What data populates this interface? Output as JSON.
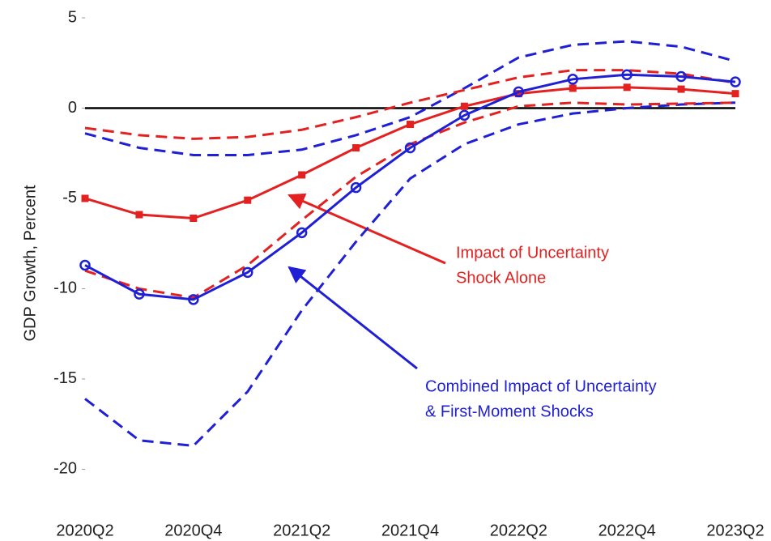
{
  "chart_data": {
    "type": "line",
    "y_label": "GDP Growth, Percent",
    "categories": [
      "2020Q2",
      null,
      "2020Q4",
      null,
      "2021Q2",
      null,
      "2021Q4",
      null,
      "2022Q2",
      null,
      "2022Q4",
      null,
      "2023Q2"
    ],
    "ylim": [
      -22,
      5
    ],
    "yticks": [
      -20,
      -15,
      -10,
      -5,
      0,
      5
    ],
    "series": [
      {
        "color": "#1f1fd6",
        "dash": true,
        "values": [
          -16.1,
          -18.4,
          -18.7,
          -15.7,
          -11.2,
          -7.4,
          -3.9,
          -2.0,
          -0.9,
          -0.3,
          0.0,
          0.2,
          0.3
        ]
      },
      {
        "color": "#1f1fd6",
        "dash": true,
        "values": [
          -1.4,
          -2.2,
          -2.6,
          -2.6,
          -2.3,
          -1.5,
          -0.5,
          1.1,
          2.8,
          3.5,
          3.7,
          3.4,
          2.6
        ]
      },
      {
        "color": "#e32121",
        "dash": true,
        "values": [
          -9.0,
          -10.0,
          -10.5,
          -8.7,
          -6.2,
          -3.8,
          -2.0,
          -0.8,
          0.1,
          0.3,
          0.2,
          0.25,
          0.3
        ]
      },
      {
        "color": "#e32121",
        "dash": true,
        "values": [
          -1.1,
          -1.5,
          -1.7,
          -1.6,
          -1.2,
          -0.5,
          0.3,
          1.0,
          1.7,
          2.1,
          2.1,
          1.9,
          1.4
        ]
      },
      {
        "color": "#e32121",
        "marker": "square",
        "values": [
          -5.0,
          -5.9,
          -6.1,
          -5.1,
          -3.7,
          -2.2,
          -0.9,
          0.1,
          0.8,
          1.1,
          1.15,
          1.05,
          0.8
        ]
      },
      {
        "color": "#1f1fd6",
        "marker": "circle",
        "values": [
          -8.7,
          -10.3,
          -10.6,
          -9.1,
          -6.9,
          -4.4,
          -2.2,
          -0.4,
          0.9,
          1.6,
          1.85,
          1.75,
          1.45
        ]
      }
    ],
    "annotations": [
      {
        "color": "#e32121",
        "lines": [
          "Impact of Uncertainty",
          "Shock Alone"
        ]
      },
      {
        "color": "#1f1fd6",
        "lines": [
          "Combined Impact of Uncertainty",
          "& First-Moment Shocks"
        ]
      }
    ]
  }
}
